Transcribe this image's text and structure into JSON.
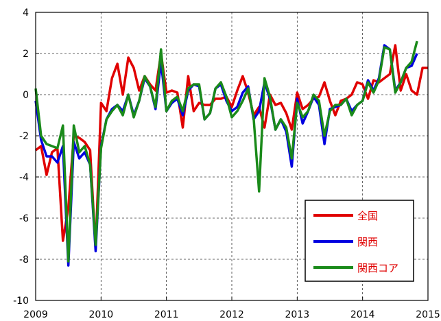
{
  "chart_data": {
    "type": "line",
    "x": [
      2009,
      2009.083,
      2009.167,
      2009.25,
      2009.333,
      2009.417,
      2009.5,
      2009.583,
      2009.667,
      2009.75,
      2009.833,
      2009.917,
      2010,
      2010.083,
      2010.167,
      2010.25,
      2010.333,
      2010.417,
      2010.5,
      2010.583,
      2010.667,
      2010.75,
      2010.833,
      2010.917,
      2011,
      2011.083,
      2011.167,
      2011.25,
      2011.333,
      2011.417,
      2011.5,
      2011.583,
      2011.667,
      2011.75,
      2011.833,
      2011.917,
      2012,
      2012.083,
      2012.167,
      2012.25,
      2012.333,
      2012.417,
      2012.5,
      2012.583,
      2012.667,
      2012.75,
      2012.833,
      2012.917,
      2013,
      2013.083,
      2013.167,
      2013.25,
      2013.333,
      2013.417,
      2013.5,
      2013.583,
      2013.667,
      2013.75,
      2013.833,
      2013.917,
      2014,
      2014.083,
      2014.167,
      2014.25,
      2014.333,
      2014.417,
      2014.5,
      2014.583,
      2014.667,
      2014.75,
      2014.833,
      2014.917,
      2015
    ],
    "series": [
      {
        "name": "全国",
        "color": "#e00000",
        "values": [
          -2.7,
          -2.5,
          -3.9,
          -2.8,
          -2.6,
          -7.1,
          -5.5,
          -2.0,
          -2.1,
          -2.3,
          -2.7,
          -7.5,
          -0.4,
          -0.8,
          0.8,
          1.5,
          0.0,
          1.8,
          1.3,
          0.2,
          0.9,
          0.5,
          0.2,
          2.0,
          0.1,
          0.2,
          0.1,
          -1.6,
          0.9,
          -0.8,
          -0.4,
          -0.5,
          -0.5,
          -0.2,
          -0.2,
          -0.1,
          -0.6,
          0.2,
          0.9,
          0.1,
          -1.0,
          -0.6,
          -1.6,
          0.0,
          -0.5,
          -0.4,
          -0.9,
          -1.7,
          0.1,
          -0.7,
          -0.5,
          -0.2,
          -0.1,
          0.6,
          -0.3,
          -1.0,
          -0.3,
          -0.2,
          0.0,
          0.6,
          0.5,
          -0.2,
          0.7,
          0.6,
          0.8,
          1.0,
          2.4,
          0.2,
          1.0,
          0.2,
          0.0,
          1.3,
          1.3
        ]
      },
      {
        "name": "関西",
        "color": "#0000e0",
        "values": [
          -0.3,
          -2.2,
          -3.0,
          -3.0,
          -3.3,
          -2.5,
          -8.3,
          -2.3,
          -3.1,
          -2.8,
          -3.4,
          -7.6,
          -2.5,
          -1.2,
          -0.7,
          -0.5,
          -0.8,
          0.0,
          -1.0,
          -0.3,
          0.8,
          0.4,
          -0.7,
          1.6,
          -0.8,
          -0.4,
          -0.2,
          -1.0,
          0.2,
          0.5,
          0.4,
          -1.2,
          -0.9,
          0.3,
          0.5,
          -0.3,
          -0.8,
          -0.6,
          0.1,
          0.4,
          -1.2,
          -0.8,
          0.6,
          -0.2,
          -1.7,
          -1.2,
          -1.8,
          -3.5,
          -0.2,
          -1.4,
          -0.8,
          -0.1,
          -0.5,
          -2.4,
          -0.7,
          -0.6,
          -0.5,
          -0.2,
          -0.8,
          -0.5,
          -0.3,
          0.7,
          0.2,
          0.8,
          2.4,
          2.2,
          0.2,
          0.6,
          1.3,
          1.4,
          2.0,
          null,
          null
        ]
      },
      {
        "name": "関西コア",
        "color": "#1a8a1a",
        "values": [
          0.3,
          -2.0,
          -2.4,
          -2.5,
          -2.6,
          -1.5,
          -8.1,
          -1.5,
          -2.8,
          -2.5,
          -3.4,
          -7.3,
          -2.6,
          -1.2,
          -0.8,
          -0.5,
          -1.0,
          0.0,
          -1.1,
          -0.3,
          0.9,
          0.4,
          -0.6,
          2.2,
          -0.8,
          -0.3,
          -0.1,
          -0.8,
          0.3,
          0.5,
          0.5,
          -1.2,
          -0.9,
          0.3,
          0.6,
          -0.1,
          -1.1,
          -0.8,
          -0.3,
          0.3,
          -1.1,
          -4.7,
          0.8,
          -0.1,
          -1.7,
          -1.2,
          -1.6,
          -3.1,
          -0.4,
          -1.1,
          -0.8,
          0.0,
          -0.3,
          -2.0,
          -0.8,
          -0.5,
          -0.5,
          -0.2,
          -1.0,
          -0.5,
          -0.3,
          0.6,
          0.1,
          0.7,
          2.3,
          2.2,
          0.1,
          0.6,
          1.3,
          1.6,
          2.6,
          null,
          null
        ]
      }
    ],
    "xlim": [
      2009,
      2015
    ],
    "xticks": [
      2009,
      2010,
      2011,
      2012,
      2013,
      2014,
      2015
    ],
    "ylim": [
      -10,
      4
    ],
    "yticks": [
      -10,
      -8,
      -6,
      -4,
      -2,
      0,
      2,
      4
    ],
    "grid": true,
    "legend": "lower-right",
    "legend_text_color": "#e00000"
  }
}
